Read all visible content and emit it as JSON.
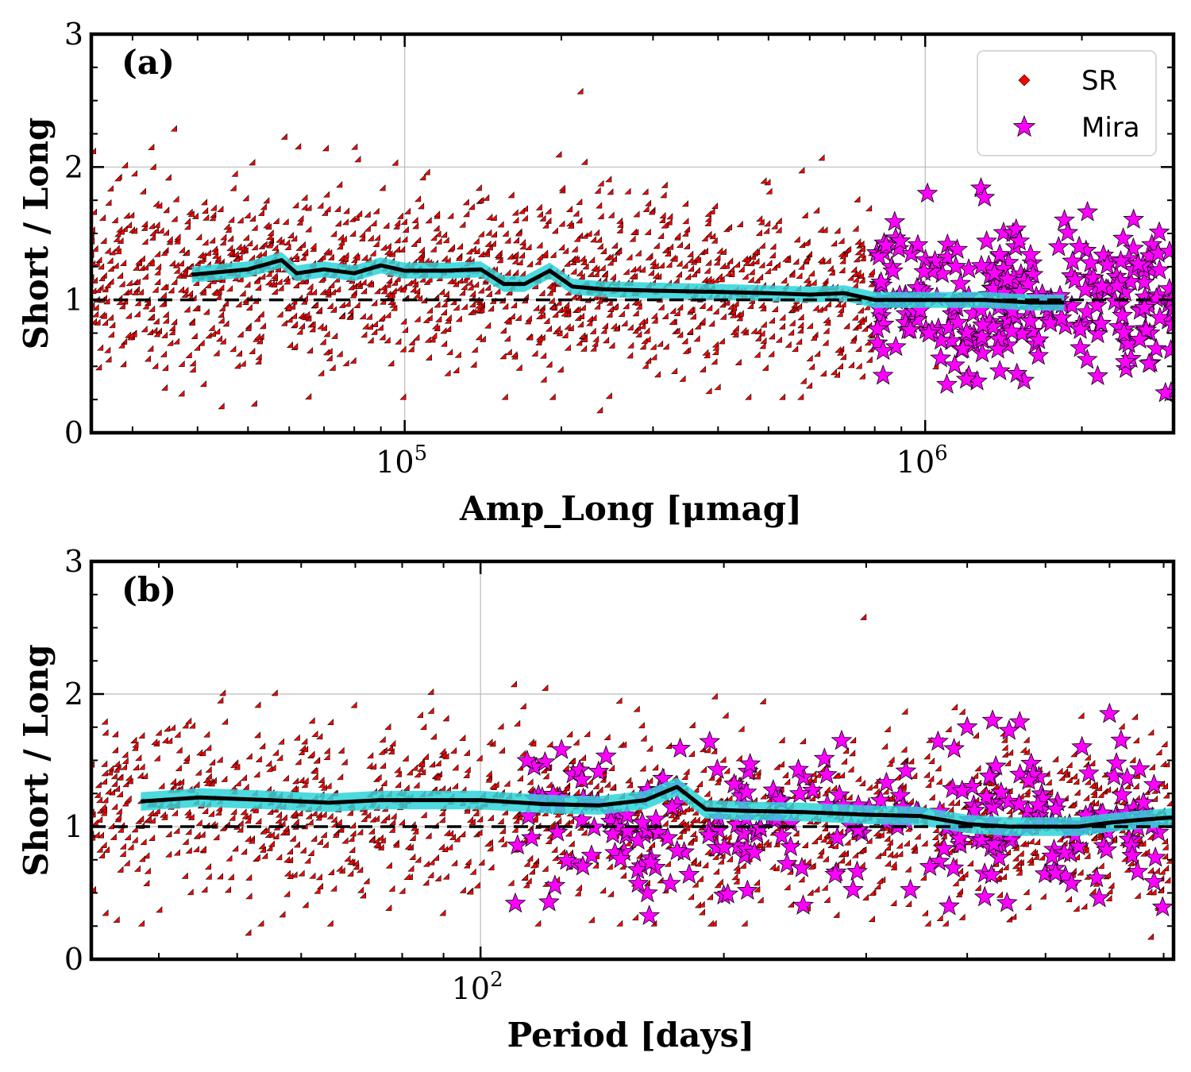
{
  "colors": {
    "sr_marker": "#ff0000",
    "mira_marker": "#ff00ff",
    "marker_edge": "#000000",
    "trend_line": "#000000",
    "trend_band": "#2ed3d8",
    "grid": "#bbbbbb"
  },
  "legend": {
    "entries": [
      "SR",
      "Mira"
    ],
    "placement": "top-right"
  },
  "chart_data": [
    {
      "type": "scatter",
      "panel_label": "(a)",
      "xlabel": "Amp_Long [μmag]",
      "ylabel": "Short / Long",
      "xscale": "log",
      "xlim": [
        25000,
        3000000
      ],
      "ylim": [
        0,
        3
      ],
      "x_major_ticks": [
        {
          "value": 100000,
          "base": "10",
          "exp": "5"
        },
        {
          "value": 1000000,
          "base": "10",
          "exp": "6"
        }
      ],
      "y_major_ticks": [
        {
          "value": 0,
          "label": "0"
        },
        {
          "value": 1,
          "label": "1"
        },
        {
          "value": 2,
          "label": "2"
        },
        {
          "value": 3,
          "label": "3"
        }
      ],
      "grid": true,
      "reference_line": {
        "y": 1,
        "style": "dashed"
      },
      "series": [
        {
          "name": "SR",
          "marker": "diamond",
          "color": "#ff0000",
          "x_range": [
            25000,
            800000
          ],
          "y_center": 1.2,
          "y_spread": 0.33,
          "count": 1500
        },
        {
          "name": "Mira",
          "marker": "star",
          "color": "#ff00ff",
          "x_range": [
            800000,
            3000000
          ],
          "y_center": 1.0,
          "y_spread": 0.28,
          "count": 260
        }
      ],
      "sr_outliers": [
        [
          25500,
          2.1
        ],
        [
          33000,
          2.13
        ],
        [
          220000,
          2.55
        ],
        [
          240000,
          0.15
        ],
        [
          35000,
          0.32
        ],
        [
          45000,
          0.18
        ],
        [
          52000,
          0.2
        ],
        [
          640000,
          2.05
        ],
        [
          1060000,
          0.48
        ]
      ],
      "mira_outliers": [
        [
          1010000,
          1.8
        ],
        [
          1280000,
          1.84
        ],
        [
          1300000,
          1.77
        ],
        [
          2050000,
          1.66
        ],
        [
          830000,
          0.43
        ],
        [
          1200000,
          0.4
        ]
      ],
      "trend": {
        "x": [
          39000,
          50000,
          58000,
          62000,
          70000,
          80000,
          90000,
          100000,
          120000,
          140000,
          155000,
          170000,
          190000,
          210000,
          240000,
          300000,
          400000,
          500000,
          600000,
          700000,
          800000,
          1000000,
          1300000,
          1600000,
          1850000
        ],
        "y": [
          1.19,
          1.23,
          1.3,
          1.2,
          1.23,
          1.2,
          1.26,
          1.22,
          1.22,
          1.23,
          1.12,
          1.12,
          1.22,
          1.1,
          1.08,
          1.07,
          1.06,
          1.05,
          1.04,
          1.05,
          1.0,
          1.0,
          1.0,
          0.98,
          0.98
        ],
        "band_halfwidth": 0.06
      }
    },
    {
      "type": "scatter",
      "panel_label": "(b)",
      "xlabel": "Period [days]",
      "ylabel": "Short / Long",
      "xscale": "log",
      "xlim": [
        33,
        720
      ],
      "ylim": [
        0,
        3
      ],
      "x_major_ticks": [
        {
          "value": 100,
          "base": "10",
          "exp": "2"
        }
      ],
      "y_major_ticks": [
        {
          "value": 0,
          "label": "0"
        },
        {
          "value": 1,
          "label": "1"
        },
        {
          "value": 2,
          "label": "2"
        },
        {
          "value": 3,
          "label": "3"
        }
      ],
      "grid": true,
      "reference_line": {
        "y": 1,
        "style": "dashed"
      },
      "series": [
        {
          "name": "SR",
          "marker": "diamond",
          "color": "#ff0000",
          "x_range": [
            33,
            720
          ],
          "y_center": 1.15,
          "y_spread": 0.33,
          "count": 1500
        },
        {
          "name": "Mira",
          "marker": "star",
          "color": "#ff00ff",
          "x_range": [
            110,
            700
          ],
          "y_center": 1.05,
          "y_spread": 0.28,
          "count": 260
        }
      ],
      "sr_outliers": [
        [
          300,
          2.56
        ],
        [
          52,
          0.18
        ],
        [
          680,
          0.15
        ],
        [
          700,
          0.5
        ],
        [
          460,
          0.3
        ]
      ],
      "mira_outliers": [
        [
          600,
          1.85
        ],
        [
          400,
          1.75
        ],
        [
          620,
          1.65
        ],
        [
          430,
          1.8
        ],
        [
          380,
          0.4
        ],
        [
          650,
          0.66
        ]
      ],
      "trend": {
        "x": [
          38,
          45,
          55,
          65,
          75,
          90,
          100,
          120,
          140,
          160,
          175,
          190,
          210,
          250,
          300,
          350,
          400,
          450,
          500,
          550,
          600,
          650,
          720
        ],
        "y": [
          1.19,
          1.22,
          1.2,
          1.18,
          1.2,
          1.2,
          1.2,
          1.17,
          1.16,
          1.2,
          1.3,
          1.13,
          1.12,
          1.11,
          1.09,
          1.08,
          1.02,
          1.0,
          1.0,
          1.0,
          1.03,
          1.05,
          1.07
        ],
        "band_halfwidth": 0.07
      }
    }
  ]
}
